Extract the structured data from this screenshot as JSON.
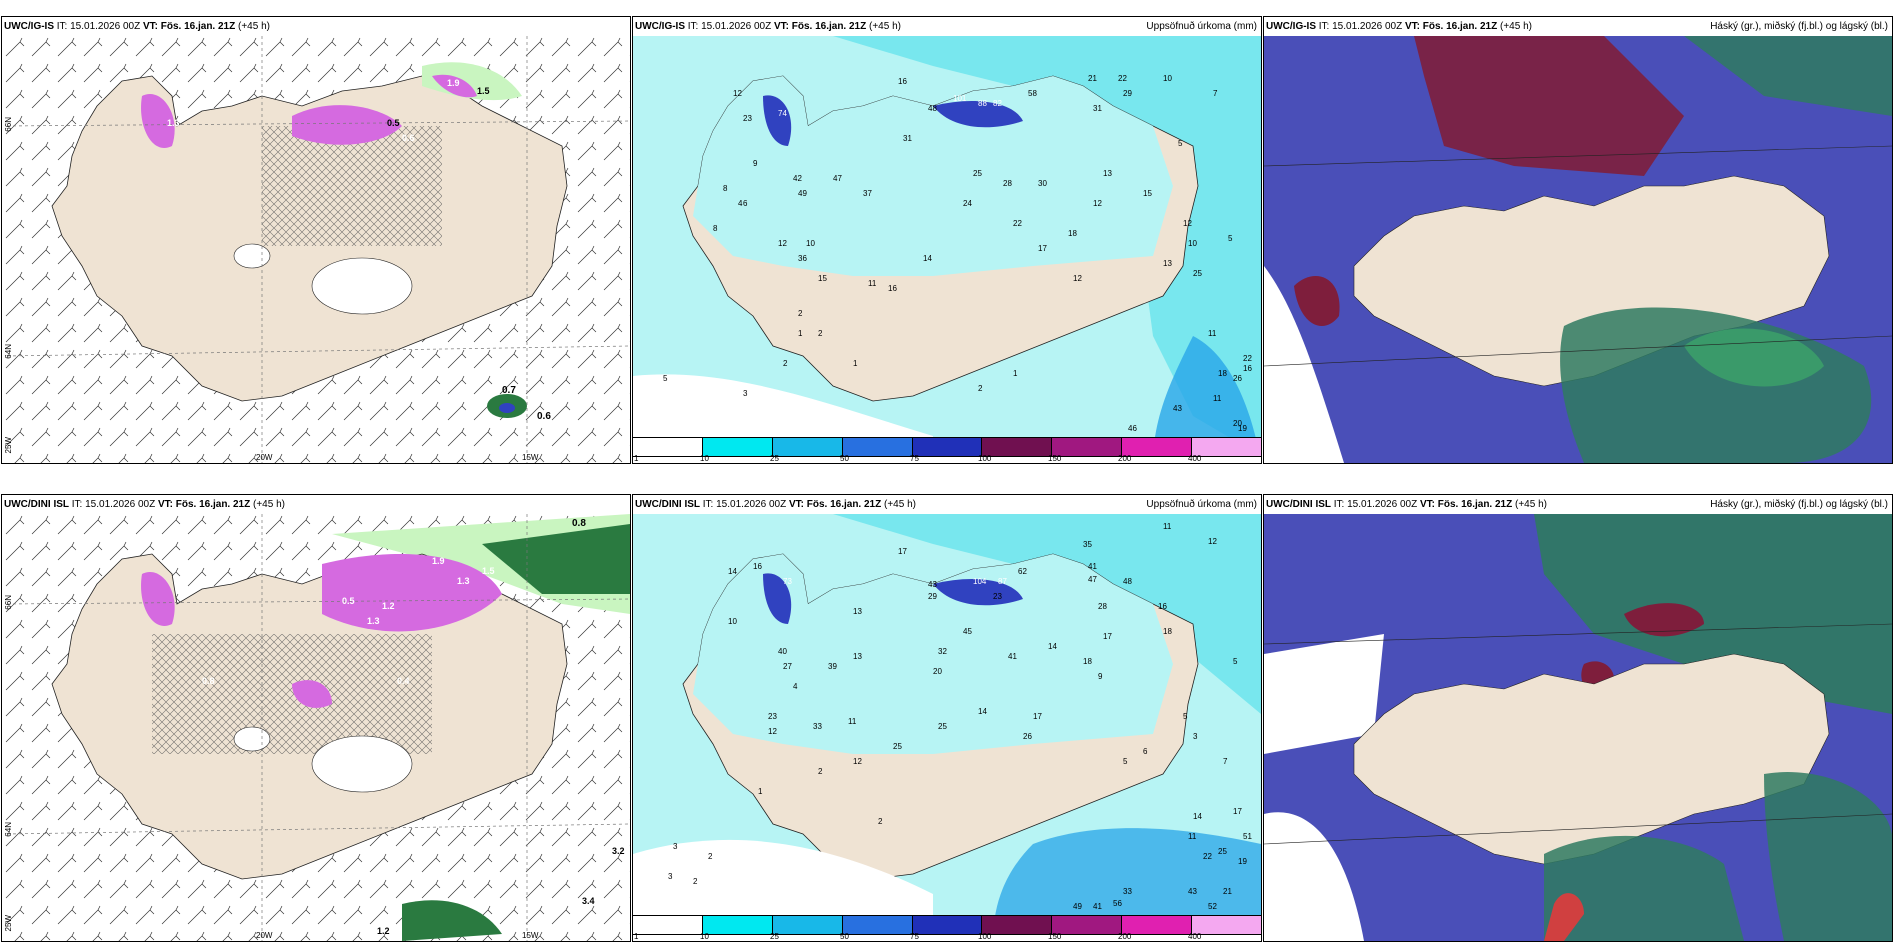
{
  "colors": {
    "land": "#efe3d3",
    "precip_light": "#b7f4f4",
    "precip_mid": "#6de4ec",
    "precip_blue": "#28a6e8",
    "precip_dark": "#3042c0",
    "snow_pink": "#d56ae0",
    "green_light": "#c9f5c0",
    "green_dark": "#2a7a40",
    "cloud_high": "#7e1e3c",
    "cloud_mid": "#4a4fb8",
    "cloud_low": "#2f7a60"
  },
  "panels": {
    "top_left": {
      "model": "UWC/IG-IS",
      "it": "IT: 15.01.2026 00Z",
      "vt": "VT: Fös. 16.jan. 21Z",
      "lead": "(+45 h)",
      "right": ""
    },
    "top_center": {
      "model": "UWC/IG-IS",
      "it": "IT: 15.01.2026 00Z",
      "vt": "VT: Fös. 16.jan. 21Z",
      "lead": "(+45 h)",
      "right": "Uppsöfnuð úrkoma (mm)"
    },
    "top_right": {
      "model": "UWC/IG-IS",
      "it": "IT: 15.01.2026 00Z",
      "vt": "VT: Fös. 16.jan. 21Z",
      "lead": "(+45 h)",
      "right": "Háský (gr.), miðský (fj.bl.) og lágský (bl.)"
    },
    "bot_left": {
      "model": "UWC/DINI ISL",
      "it": "IT: 15.01.2026 00Z",
      "vt": "VT: Fös. 16.jan. 21Z",
      "lead": "(+45 h)",
      "right": ""
    },
    "bot_center": {
      "model": "UWC/DINI ISL",
      "it": "IT: 15.01.2026 00Z",
      "vt": "VT: Fös. 16.jan. 21Z",
      "lead": "(+45 h)",
      "right": "Uppsöfnuð úrkoma (mm)"
    },
    "bot_right": {
      "model": "UWC/DINI ISL",
      "it": "IT: 15.01.2026 00Z",
      "vt": "VT: Fös. 16.jan. 21Z",
      "lead": "(+45 h)",
      "right": "Hásky (gr.), miðský (fj.bl.) og lágský (bl.)"
    }
  },
  "axis_labels": {
    "lat66": "66N",
    "lat64": "64N",
    "lon20": "20W",
    "lon15": "15W",
    "lon25": "25W"
  },
  "legend": {
    "labels": [
      "1",
      "10",
      "25",
      "50",
      "75",
      "100",
      "150",
      "200",
      "400"
    ],
    "colors": [
      "#ffffff",
      "#00e8f0",
      "#18b8e8",
      "#2870e0",
      "#2030b8",
      "#701050",
      "#a01880",
      "#e020b0",
      "#f4a8f0"
    ]
  },
  "precip_top": [
    "16",
    "12",
    "23",
    "74",
    "48",
    "58",
    "101",
    "88",
    "82",
    "21",
    "22",
    "29",
    "31",
    "5",
    "10",
    "7",
    "8",
    "4",
    "9",
    "42",
    "49",
    "47",
    "37",
    "31",
    "25",
    "28",
    "30",
    "12",
    "13",
    "15",
    "24",
    "22",
    "18",
    "17",
    "12",
    "15",
    "10",
    "14",
    "11",
    "16",
    "36",
    "12",
    "25",
    "13",
    "2",
    "1",
    "2",
    "3",
    "9",
    "11",
    "5",
    "18",
    "20",
    "22",
    "26",
    "16",
    "43",
    "46",
    "11",
    "19",
    "39",
    "12",
    "22",
    "10",
    "4",
    "6",
    "3",
    "1",
    "2",
    "1",
    "2",
    "8",
    "5"
  ],
  "precip_bot": [
    "17",
    "14",
    "16",
    "73",
    "43",
    "29",
    "104",
    "87",
    "62",
    "35",
    "41",
    "47",
    "48",
    "23",
    "11",
    "12",
    "13",
    "10",
    "40",
    "27",
    "39",
    "13",
    "45",
    "32",
    "41",
    "14",
    "17",
    "16",
    "28",
    "18",
    "18",
    "9",
    "5",
    "25",
    "33",
    "11",
    "12",
    "23",
    "20",
    "14",
    "12",
    "25",
    "26",
    "17",
    "5",
    "3",
    "6",
    "17",
    "11",
    "14",
    "22",
    "19",
    "25",
    "33",
    "49",
    "41",
    "56",
    "43",
    "51",
    "52",
    "21",
    "2",
    "3",
    "4",
    "1",
    "2",
    "7",
    "2",
    "3",
    "2",
    "4",
    "5"
  ],
  "snow_top": [
    "0.7",
    "0.6",
    "1.9",
    "1.5",
    "0.5",
    "0.6",
    "1.3"
  ],
  "snow_bot": [
    "0.8",
    "1.9",
    "1.3",
    "1.5",
    "0.5",
    "1.2",
    "1.3",
    "0.8",
    "0.4",
    "3.2",
    "3.4",
    "1.2"
  ]
}
